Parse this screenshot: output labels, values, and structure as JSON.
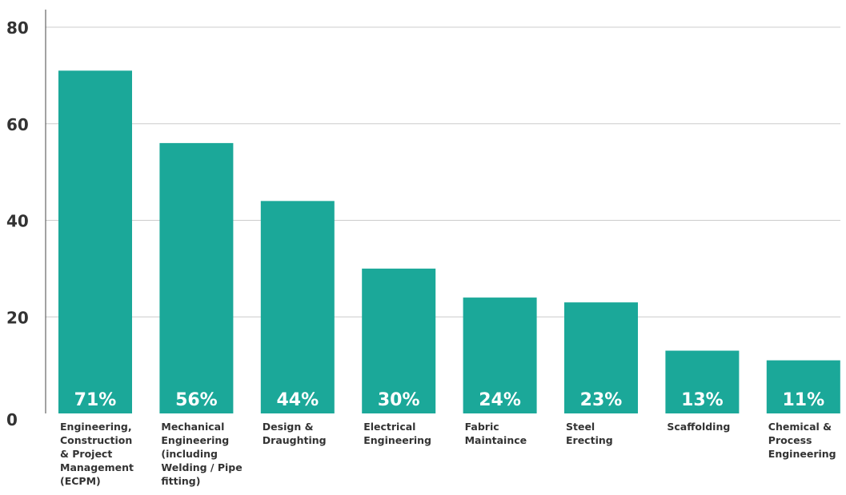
{
  "chart_data": {
    "type": "bar",
    "categories": [
      [
        "Engineering,",
        "Construction",
        "& Project",
        "Management",
        "(ECPM)"
      ],
      [
        "Mechanical",
        "Engineering",
        "(including",
        "Welding / Pipe",
        "fitting)"
      ],
      [
        "Design &",
        "Draughting"
      ],
      [
        "Electrical",
        "Engineering"
      ],
      [
        "Fabric",
        "Maintaince"
      ],
      [
        "Steel",
        "Erecting"
      ],
      [
        "Scaffolding"
      ],
      [
        "Chemical &",
        "Process",
        "Engineering"
      ]
    ],
    "values": [
      71,
      56,
      44,
      30,
      24,
      23,
      13,
      11
    ],
    "data_labels": [
      "71%",
      "56%",
      "44%",
      "30%",
      "24%",
      "23%",
      "13%",
      "11%"
    ],
    "title": "",
    "xlabel": "",
    "ylabel": "",
    "ylim": [
      0,
      80
    ],
    "yticks": [
      0,
      20,
      40,
      60,
      80
    ],
    "grid": true,
    "legend": "none",
    "colors": {
      "bar": "#1ba899",
      "grid": "#cccccc",
      "axis": "#444444",
      "text": "#333333"
    }
  }
}
